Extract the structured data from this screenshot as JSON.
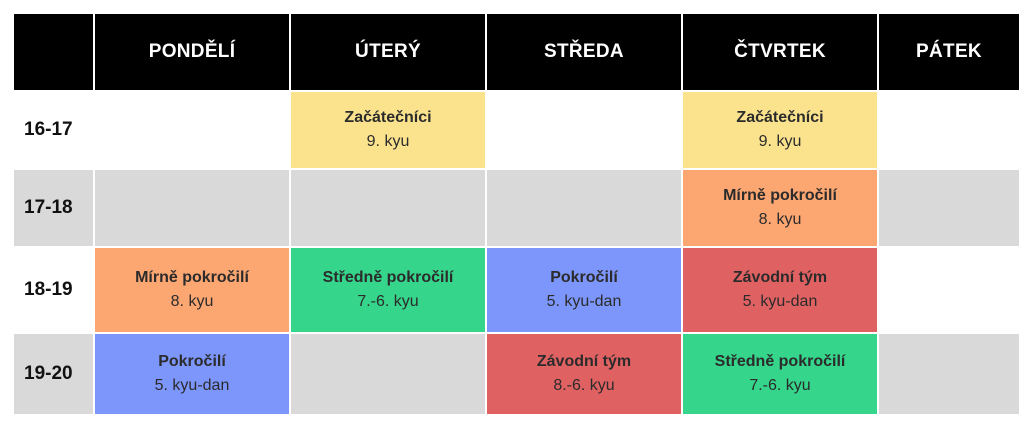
{
  "header": {
    "corner": "",
    "days": [
      "PONDĚLÍ",
      "ÚTERÝ",
      "STŘEDA",
      "ČTVRTEK",
      "PÁTEK"
    ]
  },
  "colors": {
    "header_bg": "#000000",
    "row_white": "#ffffff",
    "row_gray": "#d9d9d9",
    "beginners": "#fbe38e",
    "slightly_advanced": "#fca672",
    "intermediate": "#35d58b",
    "advanced": "#7d96fb",
    "competition": "#e06162"
  },
  "rows": [
    {
      "time": "16-17",
      "shade": "white",
      "cells": [
        null,
        {
          "name": "Začátečníci",
          "level": "9. kyu",
          "color": "#fbe38e"
        },
        null,
        {
          "name": "Začátečníci",
          "level": "9. kyu",
          "color": "#fbe38e"
        },
        null
      ]
    },
    {
      "time": "17-18",
      "shade": "gray",
      "cells": [
        null,
        null,
        null,
        {
          "name": "Mírně pokročilí",
          "level": "8. kyu",
          "color": "#fca672"
        },
        null
      ]
    },
    {
      "time": "18-19",
      "shade": "white",
      "cells": [
        {
          "name": "Mírně pokročilí",
          "level": "8. kyu",
          "color": "#fca672"
        },
        {
          "name": "Středně pokročilí",
          "level": "7.-6. kyu",
          "color": "#35d58b"
        },
        {
          "name": "Pokročilí",
          "level": "5. kyu-dan",
          "color": "#7d96fb"
        },
        {
          "name": "Závodní tým",
          "level": "5. kyu-dan",
          "color": "#e06162"
        },
        null
      ]
    },
    {
      "time": "19-20",
      "shade": "gray",
      "cells": [
        {
          "name": "Pokročilí",
          "level": "5. kyu-dan",
          "color": "#7d96fb"
        },
        null,
        {
          "name": "Závodní tým",
          "level": "8.-6. kyu",
          "color": "#e06162"
        },
        {
          "name": "Středně pokročilí",
          "level": "7.-6. kyu",
          "color": "#35d58b"
        },
        null
      ]
    }
  ]
}
